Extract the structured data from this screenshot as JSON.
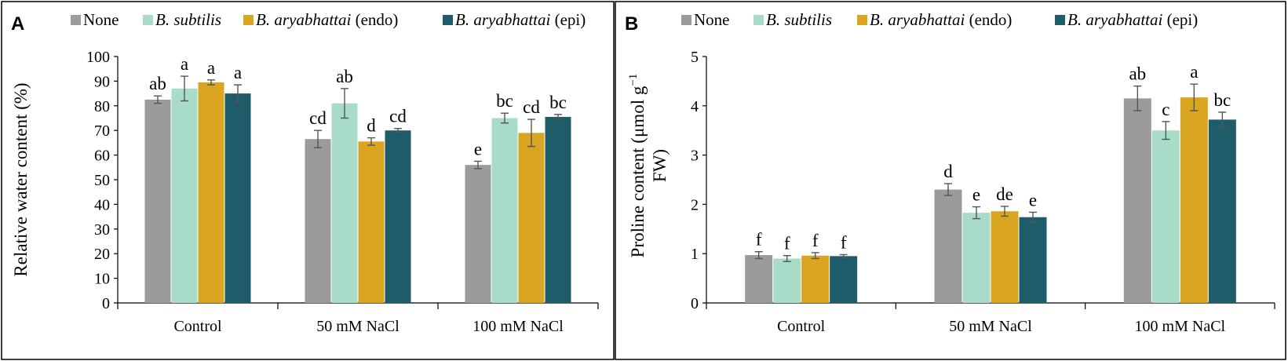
{
  "colors": {
    "series": [
      "#9b9b9b",
      "#a8dcc8",
      "#daa520",
      "#1f5c69"
    ]
  },
  "legend": [
    {
      "italic": "",
      "plain": "None"
    },
    {
      "italic": "B. subtilis",
      "plain": ""
    },
    {
      "italic": "B. aryabhattai",
      "plain": " (endo)"
    },
    {
      "italic": "B. aryabhattai",
      "plain": " (epi)"
    }
  ],
  "chart_data": [
    {
      "type": "bar",
      "panel_label": "A",
      "title": "",
      "xlabel": "",
      "ylabel": "Relative water content (%)",
      "ylim": [
        0,
        100
      ],
      "yticks": [
        "0",
        "10",
        "20",
        "30",
        "40",
        "50",
        "60",
        "70",
        "80",
        "90",
        "100"
      ],
      "categories": [
        "Control",
        "50 mM NaCl",
        "100 mM NaCl"
      ],
      "series": [
        {
          "name": "None",
          "values": [
            82.5,
            66.5,
            56
          ],
          "errors": [
            1.5,
            3.5,
            1.5
          ],
          "labels": [
            "ab",
            "cd",
            "e"
          ]
        },
        {
          "name": "B. subtilis",
          "values": [
            87,
            81,
            75
          ],
          "errors": [
            5,
            6,
            2
          ],
          "labels": [
            "a",
            "ab",
            "bc"
          ]
        },
        {
          "name": "B. aryabhattai (endo)",
          "values": [
            89.5,
            65.5,
            69
          ],
          "errors": [
            1,
            1.5,
            5.5
          ],
          "labels": [
            "a",
            "d",
            "cd"
          ]
        },
        {
          "name": "B. aryabhattai (epi)",
          "values": [
            85,
            70,
            75.5
          ],
          "errors": [
            3.5,
            0.8,
            1
          ],
          "labels": [
            "a",
            "cd",
            "bc"
          ]
        }
      ]
    },
    {
      "type": "bar",
      "panel_label": "B",
      "title": "",
      "xlabel": "",
      "ylabel_line1": "Proline content (μmol g",
      "ylabel_sup": "−1",
      "ylabel_line2": "FW)",
      "ylim": [
        0,
        5
      ],
      "yticks": [
        "0",
        "1",
        "2",
        "3",
        "4",
        "5"
      ],
      "categories": [
        "Control",
        "50 mM NaCl",
        "100 mM NaCl"
      ],
      "series": [
        {
          "name": "None",
          "values": [
            0.97,
            2.3,
            4.15
          ],
          "errors": [
            0.07,
            0.12,
            0.25
          ],
          "labels": [
            "f",
            "d",
            "ab"
          ]
        },
        {
          "name": "B. subtilis",
          "values": [
            0.9,
            1.83,
            3.5
          ],
          "errors": [
            0.06,
            0.12,
            0.18
          ],
          "labels": [
            "f",
            "e",
            "c"
          ]
        },
        {
          "name": "B. aryabhattai (endo)",
          "values": [
            0.96,
            1.86,
            4.17
          ],
          "errors": [
            0.06,
            0.1,
            0.27
          ],
          "labels": [
            "f",
            "de",
            "a"
          ]
        },
        {
          "name": "B. aryabhattai (epi)",
          "values": [
            0.95,
            1.74,
            3.72
          ],
          "errors": [
            0.03,
            0.1,
            0.15
          ],
          "labels": [
            "f",
            "e",
            "bc"
          ]
        }
      ]
    }
  ]
}
